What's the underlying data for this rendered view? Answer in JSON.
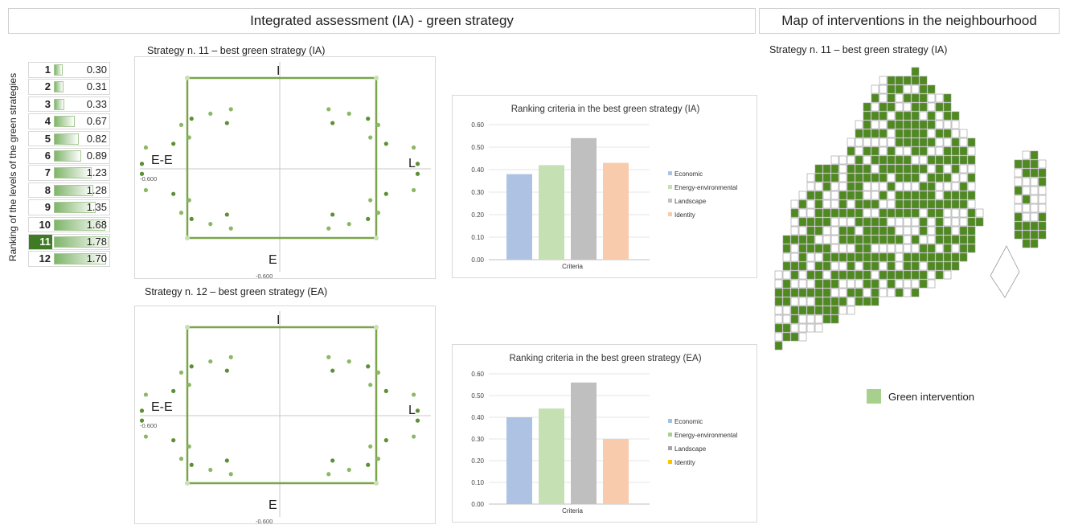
{
  "headers": {
    "left": "Integrated assessment (IA) - green strategy",
    "right": "Map of interventions in the neighbourhood"
  },
  "ranking": {
    "axis_label": "Ranking of the levels of the green strategies",
    "max_value": 1.78,
    "selected": "11",
    "rows": [
      {
        "rank": "1",
        "value": "0.30"
      },
      {
        "rank": "2",
        "value": "0.31"
      },
      {
        "rank": "3",
        "value": "0.33"
      },
      {
        "rank": "4",
        "value": "0.67"
      },
      {
        "rank": "5",
        "value": "0.82"
      },
      {
        "rank": "6",
        "value": "0.89"
      },
      {
        "rank": "7",
        "value": "1.23"
      },
      {
        "rank": "8",
        "value": "1.28"
      },
      {
        "rank": "9",
        "value": "1.35"
      },
      {
        "rank": "10",
        "value": "1.68"
      },
      {
        "rank": "11",
        "value": "1.78"
      },
      {
        "rank": "12",
        "value": "1.70"
      }
    ]
  },
  "radar": [
    {
      "title": "Strategy n. 11 – best green strategy (IA)",
      "axis_labels": {
        "top": "I",
        "bottom": "E",
        "left": "E-E",
        "right": "L"
      },
      "tick_left": "-0.600",
      "tick_bottom": "-0.600"
    },
    {
      "title": "Strategy n. 12 – best green strategy (EA)",
      "axis_labels": {
        "top": "I",
        "bottom": "E",
        "left": "E-E",
        "right": "L"
      },
      "tick_left": "-0.600",
      "tick_bottom": "-0.600"
    }
  ],
  "map": {
    "title": "Strategy n. 11 – best green strategy (IA)",
    "legend": "Green intervention",
    "green": "#4e8a1e",
    "legend_color": "#a6d08c"
  },
  "chart_data": [
    {
      "type": "bar",
      "title": "Ranking criteria in the best green strategy (IA)",
      "xlabel": "Criteria",
      "ylim": [
        0,
        0.6
      ],
      "yticks": [
        "0.00",
        "0.10",
        "0.20",
        "0.30",
        "0.40",
        "0.50",
        "0.60"
      ],
      "series": [
        {
          "name": "Economic",
          "value": 0.38,
          "color": "#aec3e4"
        },
        {
          "name": "Energy-environmental",
          "value": 0.42,
          "color": "#c5e0b3"
        },
        {
          "name": "Landscape",
          "value": 0.54,
          "color": "#bfbfbf"
        },
        {
          "name": "Identity",
          "value": 0.43,
          "color": "#f8cbad"
        }
      ]
    },
    {
      "type": "bar",
      "title": "Ranking criteria in the best green strategy (EA)",
      "xlabel": "Criteria",
      "ylim": [
        0,
        0.6
      ],
      "yticks": [
        "0.00",
        "0.10",
        "0.20",
        "0.30",
        "0.40",
        "0.50",
        "0.60"
      ],
      "series": [
        {
          "name": "Economic",
          "value": 0.4,
          "color": "#aec3e4"
        },
        {
          "name": "Energy-environmental",
          "value": 0.44,
          "color": "#c5e0b3"
        },
        {
          "name": "Landscape",
          "value": 0.56,
          "color": "#bfbfbf"
        },
        {
          "name": "Identity",
          "value": 0.3,
          "color": "#f8cbad"
        }
      ],
      "legend_colors": [
        "#9dc3e6",
        "#a9d18e",
        "#a5a5a5",
        "#ffc000"
      ]
    }
  ]
}
